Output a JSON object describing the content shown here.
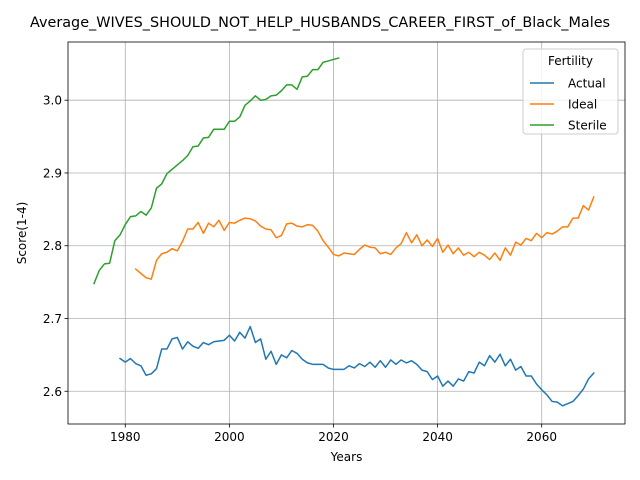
{
  "chart_data": {
    "type": "line",
    "title": "Average_WIVES_SHOULD_NOT_HELP_HUSBANDS_CAREER_FIRST_of_Black_Males",
    "xlabel": "Years",
    "ylabel": "Score(1-4)",
    "xlim": [
      1969,
      2076
    ],
    "ylim": [
      2.555,
      3.08
    ],
    "xticks": [
      1980,
      2000,
      2020,
      2040,
      2060
    ],
    "yticks": [
      2.6,
      2.7,
      2.8,
      2.9,
      3.0
    ],
    "grid": true,
    "legend": {
      "title": "Fertility",
      "position": "top-right"
    },
    "series": [
      {
        "name": "Actual",
        "color": "#1f77b4",
        "x": [
          1979,
          1980,
          1981,
          1982,
          1983,
          1984,
          1985,
          1986,
          1987,
          1988,
          1989,
          1990,
          1991,
          1992,
          1993,
          1994,
          1995,
          1996,
          1997,
          1998,
          1999,
          2000,
          2001,
          2002,
          2003,
          2004,
          2005,
          2006,
          2007,
          2008,
          2009,
          2010,
          2011,
          2012,
          2013,
          2014,
          2015,
          2016,
          2017,
          2018,
          2019,
          2020,
          2021,
          2022,
          2023,
          2024,
          2025,
          2026,
          2027,
          2028,
          2029,
          2030,
          2031,
          2032,
          2033,
          2034,
          2035,
          2036,
          2037,
          2038,
          2039,
          2040,
          2041,
          2042,
          2043,
          2044,
          2045,
          2046,
          2047,
          2048,
          2049,
          2050,
          2051,
          2052,
          2053,
          2054,
          2055,
          2056,
          2057,
          2058,
          2059,
          2060,
          2061,
          2062,
          2063,
          2064,
          2065,
          2066,
          2067,
          2068,
          2069,
          2070
        ],
        "values": [
          2.645,
          2.64,
          2.645,
          2.638,
          2.635,
          2.622,
          2.624,
          2.631,
          2.658,
          2.658,
          2.672,
          2.674,
          2.658,
          2.668,
          2.662,
          2.659,
          2.667,
          2.664,
          2.668,
          2.669,
          2.67,
          2.677,
          2.669,
          2.681,
          2.673,
          2.689,
          2.667,
          2.672,
          2.644,
          2.655,
          2.637,
          2.65,
          2.646,
          2.656,
          2.652,
          2.644,
          2.639,
          2.637,
          2.637,
          2.637,
          2.632,
          2.63,
          2.63,
          2.63,
          2.635,
          2.632,
          2.638,
          2.634,
          2.64,
          2.633,
          2.642,
          2.633,
          2.643,
          2.637,
          2.643,
          2.639,
          2.642,
          2.637,
          2.629,
          2.627,
          2.616,
          2.621,
          2.607,
          2.614,
          2.607,
          2.617,
          2.614,
          2.627,
          2.625,
          2.64,
          2.635,
          2.649,
          2.64,
          2.651,
          2.635,
          2.644,
          2.629,
          2.634,
          2.621,
          2.621,
          2.61,
          2.602,
          2.595,
          2.586,
          2.585,
          2.58,
          2.583,
          2.586,
          2.594,
          2.603,
          2.617,
          2.625
        ]
      },
      {
        "name": "Ideal",
        "color": "#ff7f0e",
        "x": [
          1982,
          1983,
          1984,
          1985,
          1986,
          1987,
          1988,
          1989,
          1990,
          1991,
          1992,
          1993,
          1994,
          1995,
          1996,
          1997,
          1998,
          1999,
          2000,
          2001,
          2002,
          2003,
          2004,
          2005,
          2006,
          2007,
          2008,
          2009,
          2010,
          2011,
          2012,
          2013,
          2014,
          2015,
          2016,
          2017,
          2018,
          2019,
          2020,
          2021,
          2022,
          2023,
          2024,
          2025,
          2026,
          2027,
          2028,
          2029,
          2030,
          2031,
          2032,
          2033,
          2034,
          2035,
          2036,
          2037,
          2038,
          2039,
          2040,
          2041,
          2042,
          2043,
          2044,
          2045,
          2046,
          2047,
          2048,
          2049,
          2050,
          2051,
          2052,
          2053,
          2054,
          2055,
          2056,
          2057,
          2058,
          2059,
          2060,
          2061,
          2062,
          2063,
          2064,
          2065,
          2066,
          2067,
          2068,
          2069,
          2070
        ],
        "values": [
          2.768,
          2.762,
          2.756,
          2.754,
          2.78,
          2.789,
          2.791,
          2.796,
          2.793,
          2.806,
          2.823,
          2.823,
          2.832,
          2.817,
          2.831,
          2.826,
          2.835,
          2.821,
          2.832,
          2.831,
          2.835,
          2.838,
          2.837,
          2.834,
          2.827,
          2.823,
          2.822,
          2.811,
          2.814,
          2.83,
          2.831,
          2.827,
          2.826,
          2.829,
          2.828,
          2.82,
          2.807,
          2.798,
          2.788,
          2.786,
          2.79,
          2.789,
          2.788,
          2.795,
          2.801,
          2.798,
          2.797,
          2.789,
          2.791,
          2.788,
          2.797,
          2.803,
          2.818,
          2.804,
          2.815,
          2.8,
          2.808,
          2.799,
          2.81,
          2.791,
          2.801,
          2.789,
          2.797,
          2.787,
          2.791,
          2.785,
          2.791,
          2.787,
          2.781,
          2.79,
          2.78,
          2.797,
          2.787,
          2.805,
          2.801,
          2.81,
          2.807,
          2.817,
          2.811,
          2.818,
          2.816,
          2.82,
          2.826,
          2.826,
          2.838,
          2.838,
          2.855,
          2.849,
          2.867
        ]
      },
      {
        "name": "Sterile",
        "color": "#2ca02c",
        "x": [
          1974,
          1975,
          1976,
          1977,
          1978,
          1979,
          1980,
          1981,
          1982,
          1983,
          1984,
          1985,
          1986,
          1987,
          1988,
          1989,
          1990,
          1991,
          1992,
          1993,
          1994,
          1995,
          1996,
          1997,
          1998,
          1999,
          2000,
          2001,
          2002,
          2003,
          2004,
          2005,
          2006,
          2007,
          2008,
          2009,
          2010,
          2011,
          2012,
          2013,
          2014,
          2015,
          2016,
          2017,
          2018,
          2019,
          2020,
          2021
        ],
        "values": [
          2.748,
          2.766,
          2.775,
          2.776,
          2.807,
          2.815,
          2.829,
          2.84,
          2.841,
          2.847,
          2.842,
          2.852,
          2.879,
          2.885,
          2.899,
          2.905,
          2.911,
          2.917,
          2.924,
          2.936,
          2.937,
          2.948,
          2.949,
          2.96,
          2.96,
          2.96,
          2.971,
          2.971,
          2.977,
          2.993,
          2.999,
          3.006,
          3.0,
          3.001,
          3.006,
          3.007,
          3.013,
          3.021,
          3.021,
          3.015,
          3.032,
          3.033,
          3.042,
          3.042,
          3.052,
          3.054,
          3.056,
          3.058
        ]
      }
    ]
  }
}
